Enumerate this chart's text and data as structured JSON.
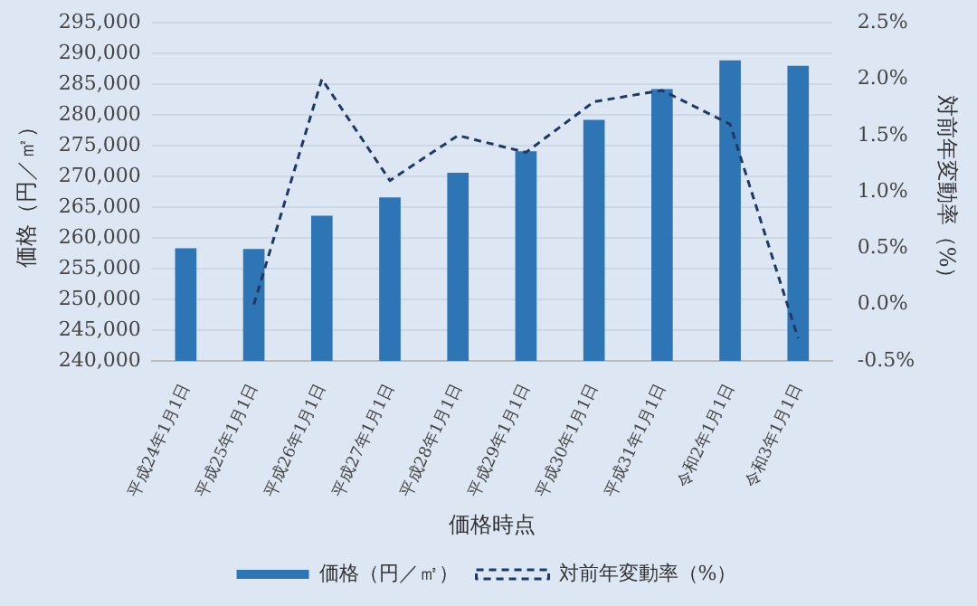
{
  "chart_data": {
    "type": "bar",
    "xlabel": "価格時点",
    "ylabel": "価格（円／㎡）",
    "y2label": "対前年変動率（%）",
    "categories": [
      "平成24年1月1日",
      "平成25年1月1日",
      "平成26年1月1日",
      "平成27年1月1日",
      "平成28年1月1日",
      "平成29年1月1日",
      "平成30年1月1日",
      "平成31年1月1日",
      "令和2年1月1日",
      "令和3年1月1日"
    ],
    "series": [
      {
        "name": "価格（円／㎡）",
        "color": "#2e75b6",
        "values": [
          258300,
          258200,
          263600,
          266600,
          270600,
          274100,
          279200,
          284200,
          288900,
          288000
        ]
      },
      {
        "name": "対前年変動率（%）",
        "type": "line",
        "axis": "y2",
        "color": "#1f3864",
        "line_style": "dashed",
        "marker": "none",
        "values": [
          null,
          0.0,
          2.0,
          1.1,
          1.5,
          1.35,
          1.8,
          1.9,
          1.6,
          -0.3
        ]
      }
    ],
    "ylim": [
      240000,
      295000
    ],
    "yticks": [
      {
        "value": 240000,
        "label": "240,000"
      },
      {
        "value": 245000,
        "label": "245,000"
      },
      {
        "value": 250000,
        "label": "250,000"
      },
      {
        "value": 255000,
        "label": "255,000"
      },
      {
        "value": 260000,
        "label": "260,000"
      },
      {
        "value": 265000,
        "label": "265,000"
      },
      {
        "value": 270000,
        "label": "270,000"
      },
      {
        "value": 275000,
        "label": "275,000"
      },
      {
        "value": 280000,
        "label": "280,000"
      },
      {
        "value": 285000,
        "label": "285,000"
      },
      {
        "value": 290000,
        "label": "290,000"
      },
      {
        "value": 295000,
        "label": "295,000"
      }
    ],
    "y2lim": [
      -0.5,
      2.5
    ],
    "y2ticks": [
      {
        "value": -0.5,
        "label": "-0.5%"
      },
      {
        "value": 0,
        "label": "0.0%"
      },
      {
        "value": 0.5,
        "label": "0.5%"
      },
      {
        "value": 1,
        "label": "1.0%"
      },
      {
        "value": 1.5,
        "label": "1.5%"
      },
      {
        "value": 2,
        "label": "2.0%"
      },
      {
        "value": 2.5,
        "label": "2.5%"
      }
    ],
    "grid": "y",
    "legend": "bottom"
  }
}
